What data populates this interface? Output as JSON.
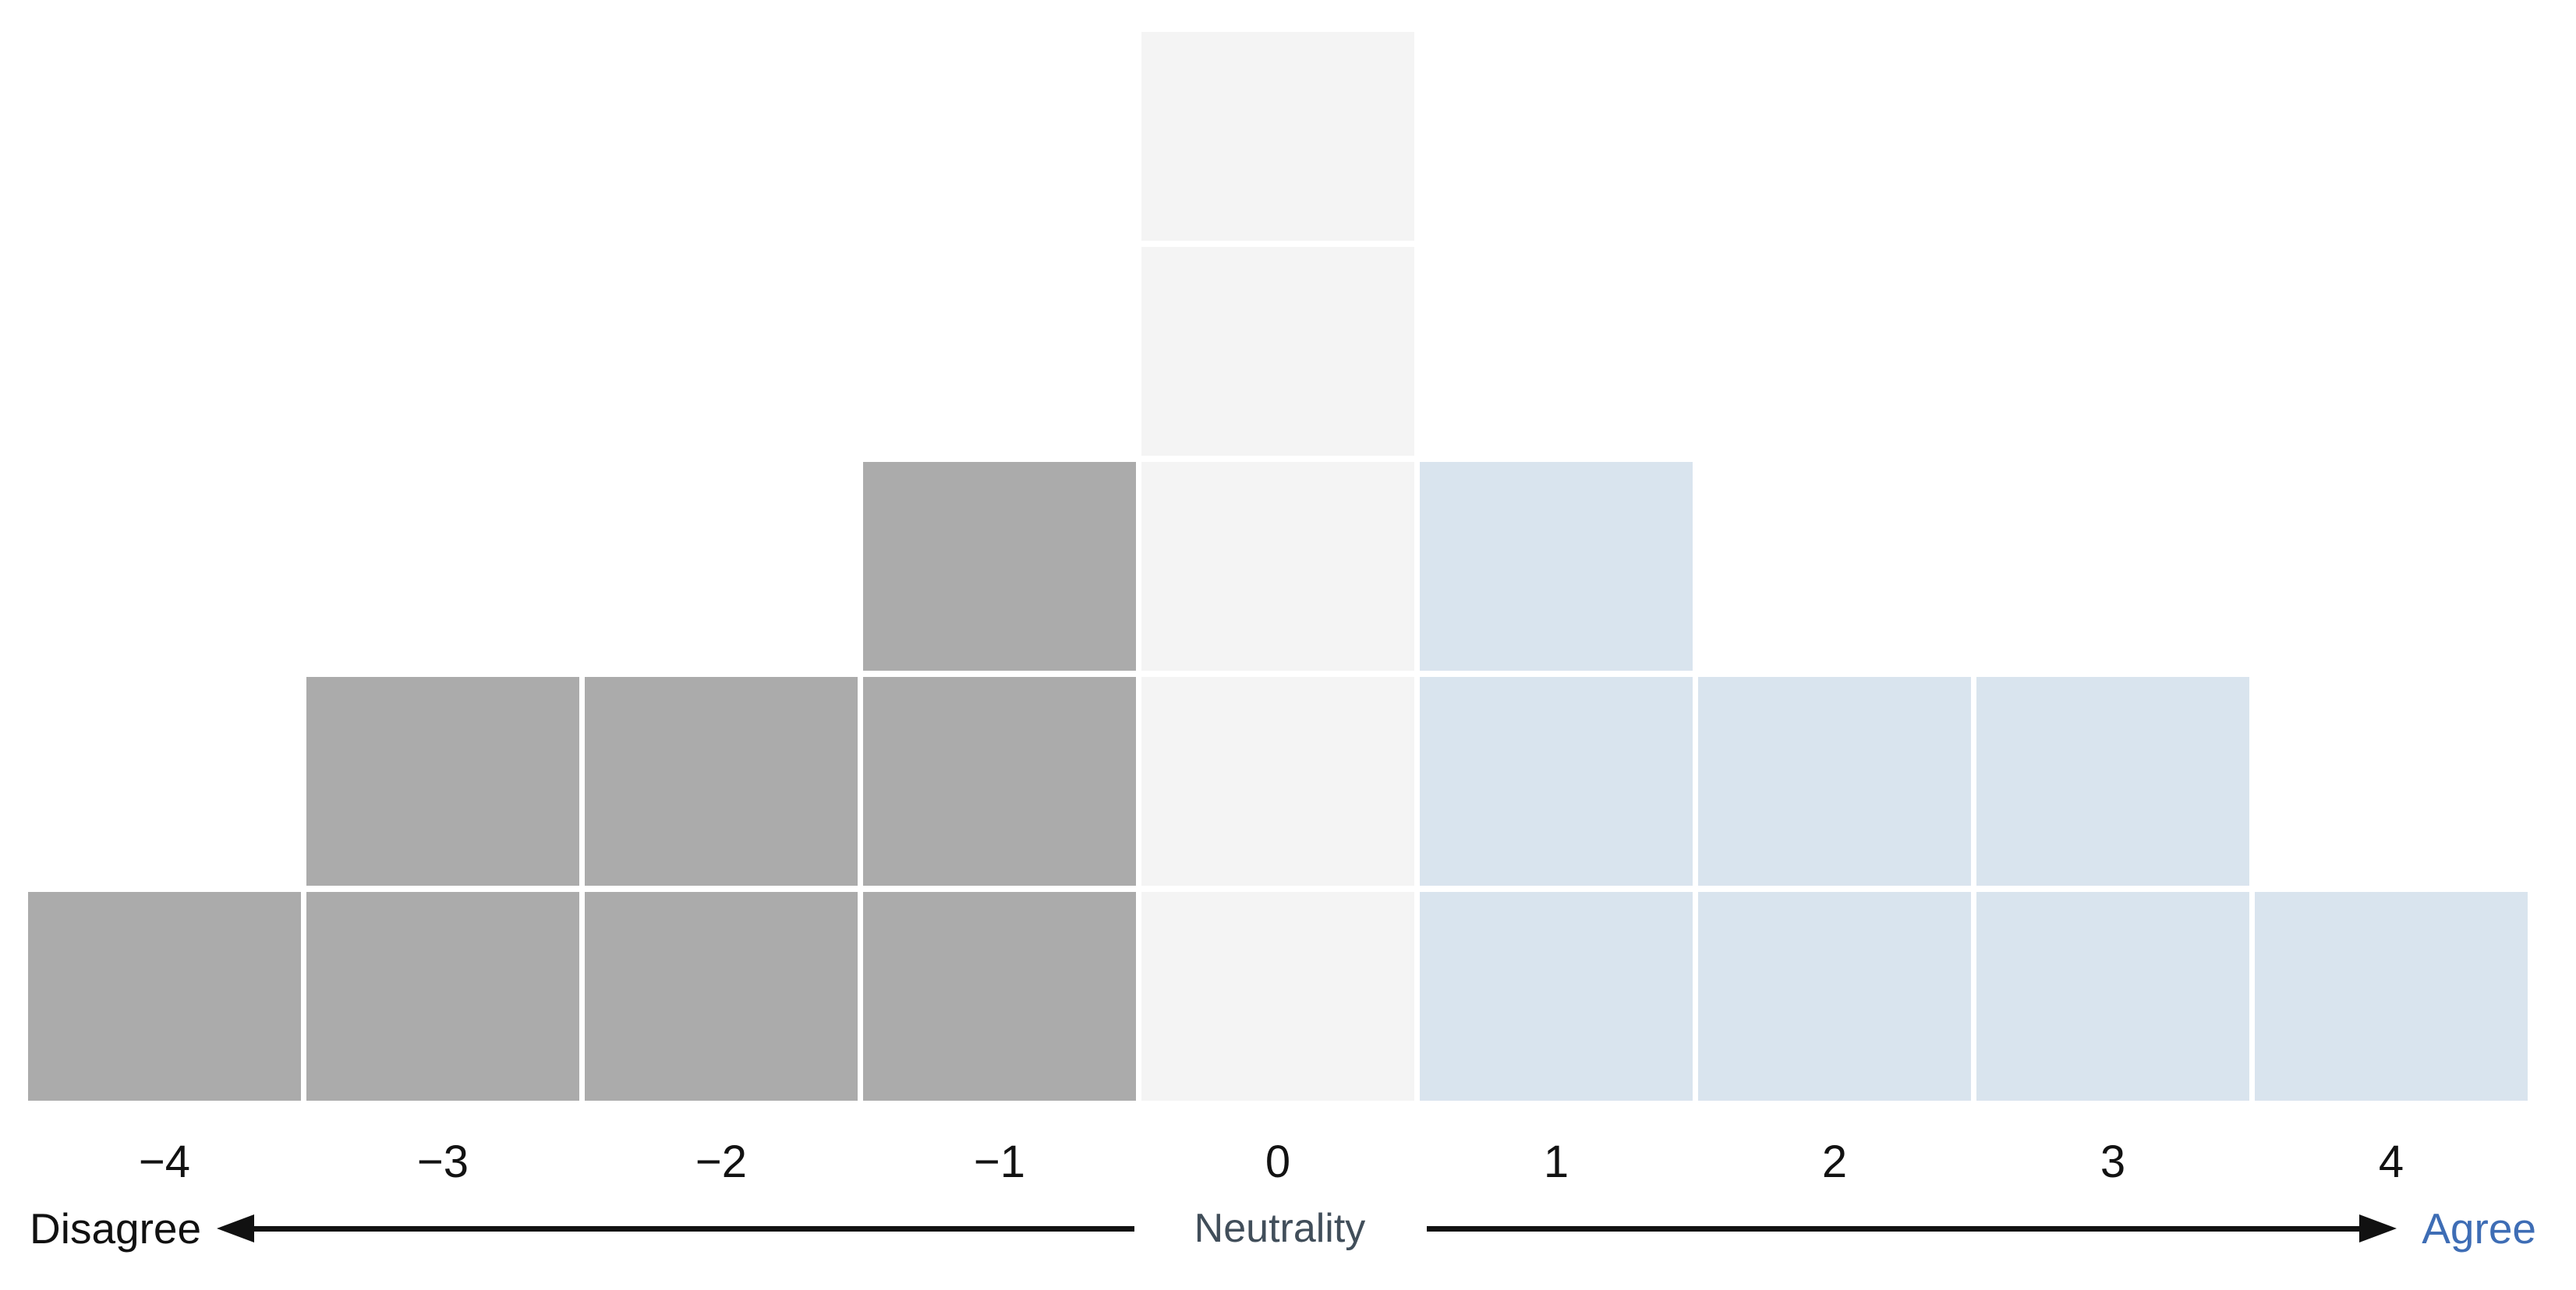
{
  "page": {
    "background": "#ffffff"
  },
  "chart_data": {
    "type": "bar",
    "variant": "unit_block_histogram",
    "title": "",
    "xlabel": "",
    "ylabel": "",
    "categories": [
      "−4",
      "−3",
      "−2",
      "−1",
      "0",
      "1",
      "2",
      "3",
      "4"
    ],
    "values": [
      1,
      2,
      2,
      3,
      5,
      3,
      2,
      2,
      1
    ],
    "groups": [
      "disagree",
      "disagree",
      "disagree",
      "disagree",
      "neutral",
      "agree",
      "agree",
      "agree",
      "agree"
    ],
    "group_colors": {
      "disagree": "#ababab",
      "neutral": "#f4f4f4",
      "agree": "#d9e4ee"
    },
    "ylim": [
      0,
      5
    ],
    "grid": false,
    "legend": "none",
    "tick_label_color": "#121212",
    "axis_annotations": {
      "left_label": "Disagree",
      "center_label": "Neutrality",
      "right_label": "Agree",
      "left_label_color": "#111111",
      "center_label_color": "#414e5a",
      "right_label_color": "#3e6db5",
      "arrow_color": "#111111"
    }
  }
}
